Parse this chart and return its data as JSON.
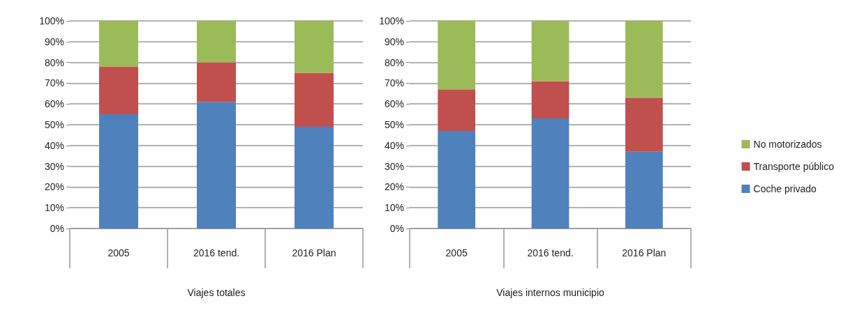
{
  "chart_data": [
    {
      "type": "bar",
      "stacked": true,
      "xlabel": "Viajes totales",
      "categories": [
        "2005",
        "2016 tend.",
        "2016 Plan"
      ],
      "series": [
        {
          "color": "#4f81bd",
          "values": [
            55,
            61,
            49
          ]
        },
        {
          "color": "#c0504d",
          "values": [
            23,
            19,
            26
          ]
        },
        {
          "color": "#9bbb59",
          "values": [
            22,
            20,
            25
          ]
        }
      ],
      "ylim": [
        0,
        100
      ],
      "yticks": [
        {
          "value": 0,
          "label": "0%"
        },
        {
          "value": 10,
          "label": "10%"
        },
        {
          "value": 20,
          "label": "20%"
        },
        {
          "value": 30,
          "label": "30%"
        },
        {
          "value": 40,
          "label": "40%"
        },
        {
          "value": 50,
          "label": "50%"
        },
        {
          "value": 60,
          "label": "60%"
        },
        {
          "value": 70,
          "label": "70%"
        },
        {
          "value": 80,
          "label": "80%"
        },
        {
          "value": 90,
          "label": "90%"
        },
        {
          "value": 100,
          "label": "100%"
        }
      ],
      "grid": "y",
      "legend": false
    },
    {
      "type": "bar",
      "stacked": true,
      "xlabel": "Viajes internos municipio",
      "categories": [
        "2005",
        "2016 tend.",
        "2016 Plan"
      ],
      "series": [
        {
          "name": "Coche privado",
          "color": "#4f81bd",
          "values": [
            47,
            53,
            37
          ]
        },
        {
          "name": "Transporte público",
          "color": "#c0504d",
          "values": [
            20,
            18,
            26
          ]
        },
        {
          "name": "No motorizados",
          "color": "#9bbb59",
          "values": [
            33,
            29,
            37
          ]
        }
      ],
      "ylim": [
        0,
        100
      ],
      "yticks": [
        {
          "value": 0,
          "label": "0%"
        },
        {
          "value": 10,
          "label": "10%"
        },
        {
          "value": 20,
          "label": "20%"
        },
        {
          "value": 30,
          "label": "30%"
        },
        {
          "value": 40,
          "label": "40%"
        },
        {
          "value": 50,
          "label": "50%"
        },
        {
          "value": 60,
          "label": "60%"
        },
        {
          "value": 70,
          "label": "70%"
        },
        {
          "value": 80,
          "label": "80%"
        },
        {
          "value": 90,
          "label": "90%"
        },
        {
          "value": 100,
          "label": "100%"
        }
      ],
      "grid": "y",
      "legend": "right"
    }
  ]
}
